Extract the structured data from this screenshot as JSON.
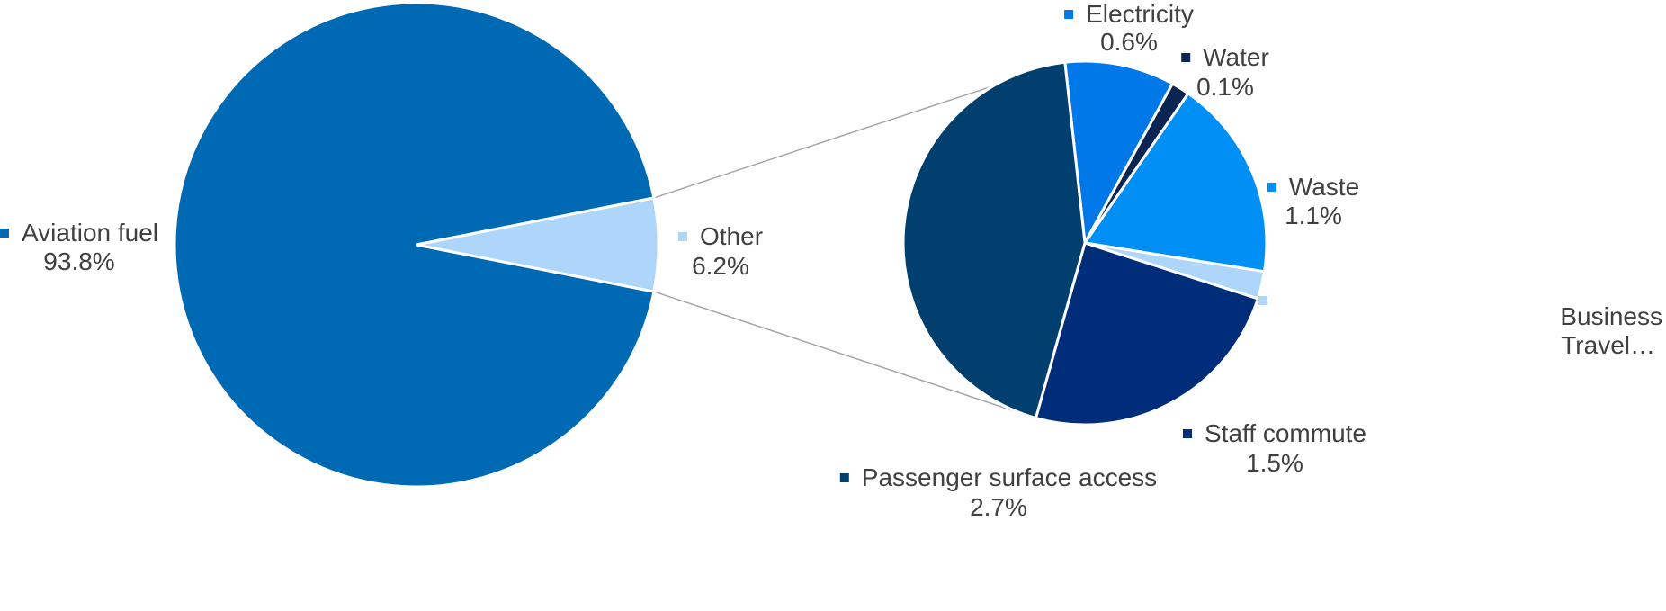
{
  "chart_data": {
    "type": "pie",
    "subtype": "pie-of-pie",
    "main_pie": {
      "slices": [
        {
          "label": "Aviation fuel",
          "value": 93.8,
          "display": "93.8%",
          "color": "#0069B4"
        },
        {
          "label": "Other",
          "value": 6.2,
          "display": "6.2%",
          "color": "#AED6FB"
        }
      ]
    },
    "secondary_pie": {
      "slices": [
        {
          "label": "Electricity",
          "value": 0.6,
          "display": "0.6%",
          "color": "#0078E8"
        },
        {
          "label": "Water",
          "value": 0.1,
          "display": "0.1%",
          "color": "#0B2553"
        },
        {
          "label": "Waste",
          "value": 1.1,
          "display": "1.1%",
          "color": "#0090F5"
        },
        {
          "label": "Business Travel…",
          "value": 0.15,
          "display": "",
          "color": "#AED6FB"
        },
        {
          "label": "Staff commute",
          "value": 1.5,
          "display": "1.5%",
          "color": "#002D7A"
        },
        {
          "label": "Passenger surface access",
          "value": 2.7,
          "display": "2.7%",
          "color": "#003F6E"
        }
      ]
    },
    "connector_color": "#A6A6A6",
    "legend": "none"
  }
}
